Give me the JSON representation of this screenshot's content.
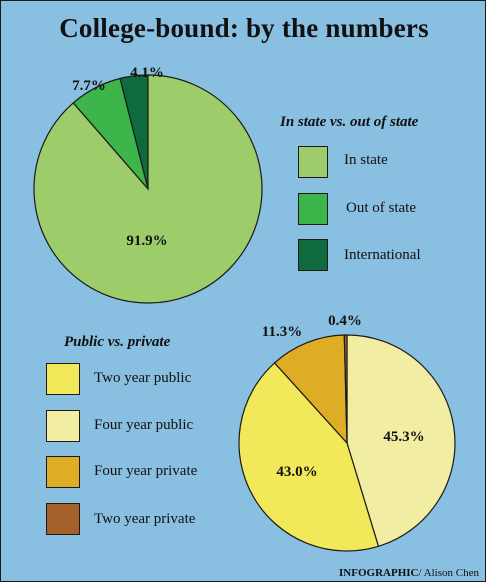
{
  "title": "College-bound: by the numbers",
  "chart_data": [
    {
      "type": "pie",
      "legend_title": "In state vs. out of state",
      "legend_position": "right",
      "slices": [
        {
          "label": "In state",
          "value": 91.9,
          "value_label": "91.9%",
          "color": "#9dcc6b"
        },
        {
          "label": "Out of state",
          "value": 7.7,
          "value_label": "7.7%",
          "color": "#3db54a"
        },
        {
          "label": "International",
          "value": 4.1,
          "value_label": "4.1%",
          "color": "#0f6b3f"
        }
      ]
    },
    {
      "type": "pie",
      "legend_title": "Public vs. private",
      "legend_position": "left",
      "slices": [
        {
          "label": "Two year public",
          "value": 43.0,
          "value_label": "43.0%",
          "color": "#f2e95a"
        },
        {
          "label": "Four year public",
          "value": 45.3,
          "value_label": "45.3%",
          "color": "#f1eda2"
        },
        {
          "label": "Four year private",
          "value": 11.3,
          "value_label": "11.3%",
          "color": "#dfac25"
        },
        {
          "label": "Two year private",
          "value": 0.4,
          "value_label": "0.4%",
          "color": "#a5602a"
        }
      ]
    }
  ],
  "credit": {
    "bold": "INFOGRAPHIC",
    "rest": "/ Alison Chen"
  }
}
